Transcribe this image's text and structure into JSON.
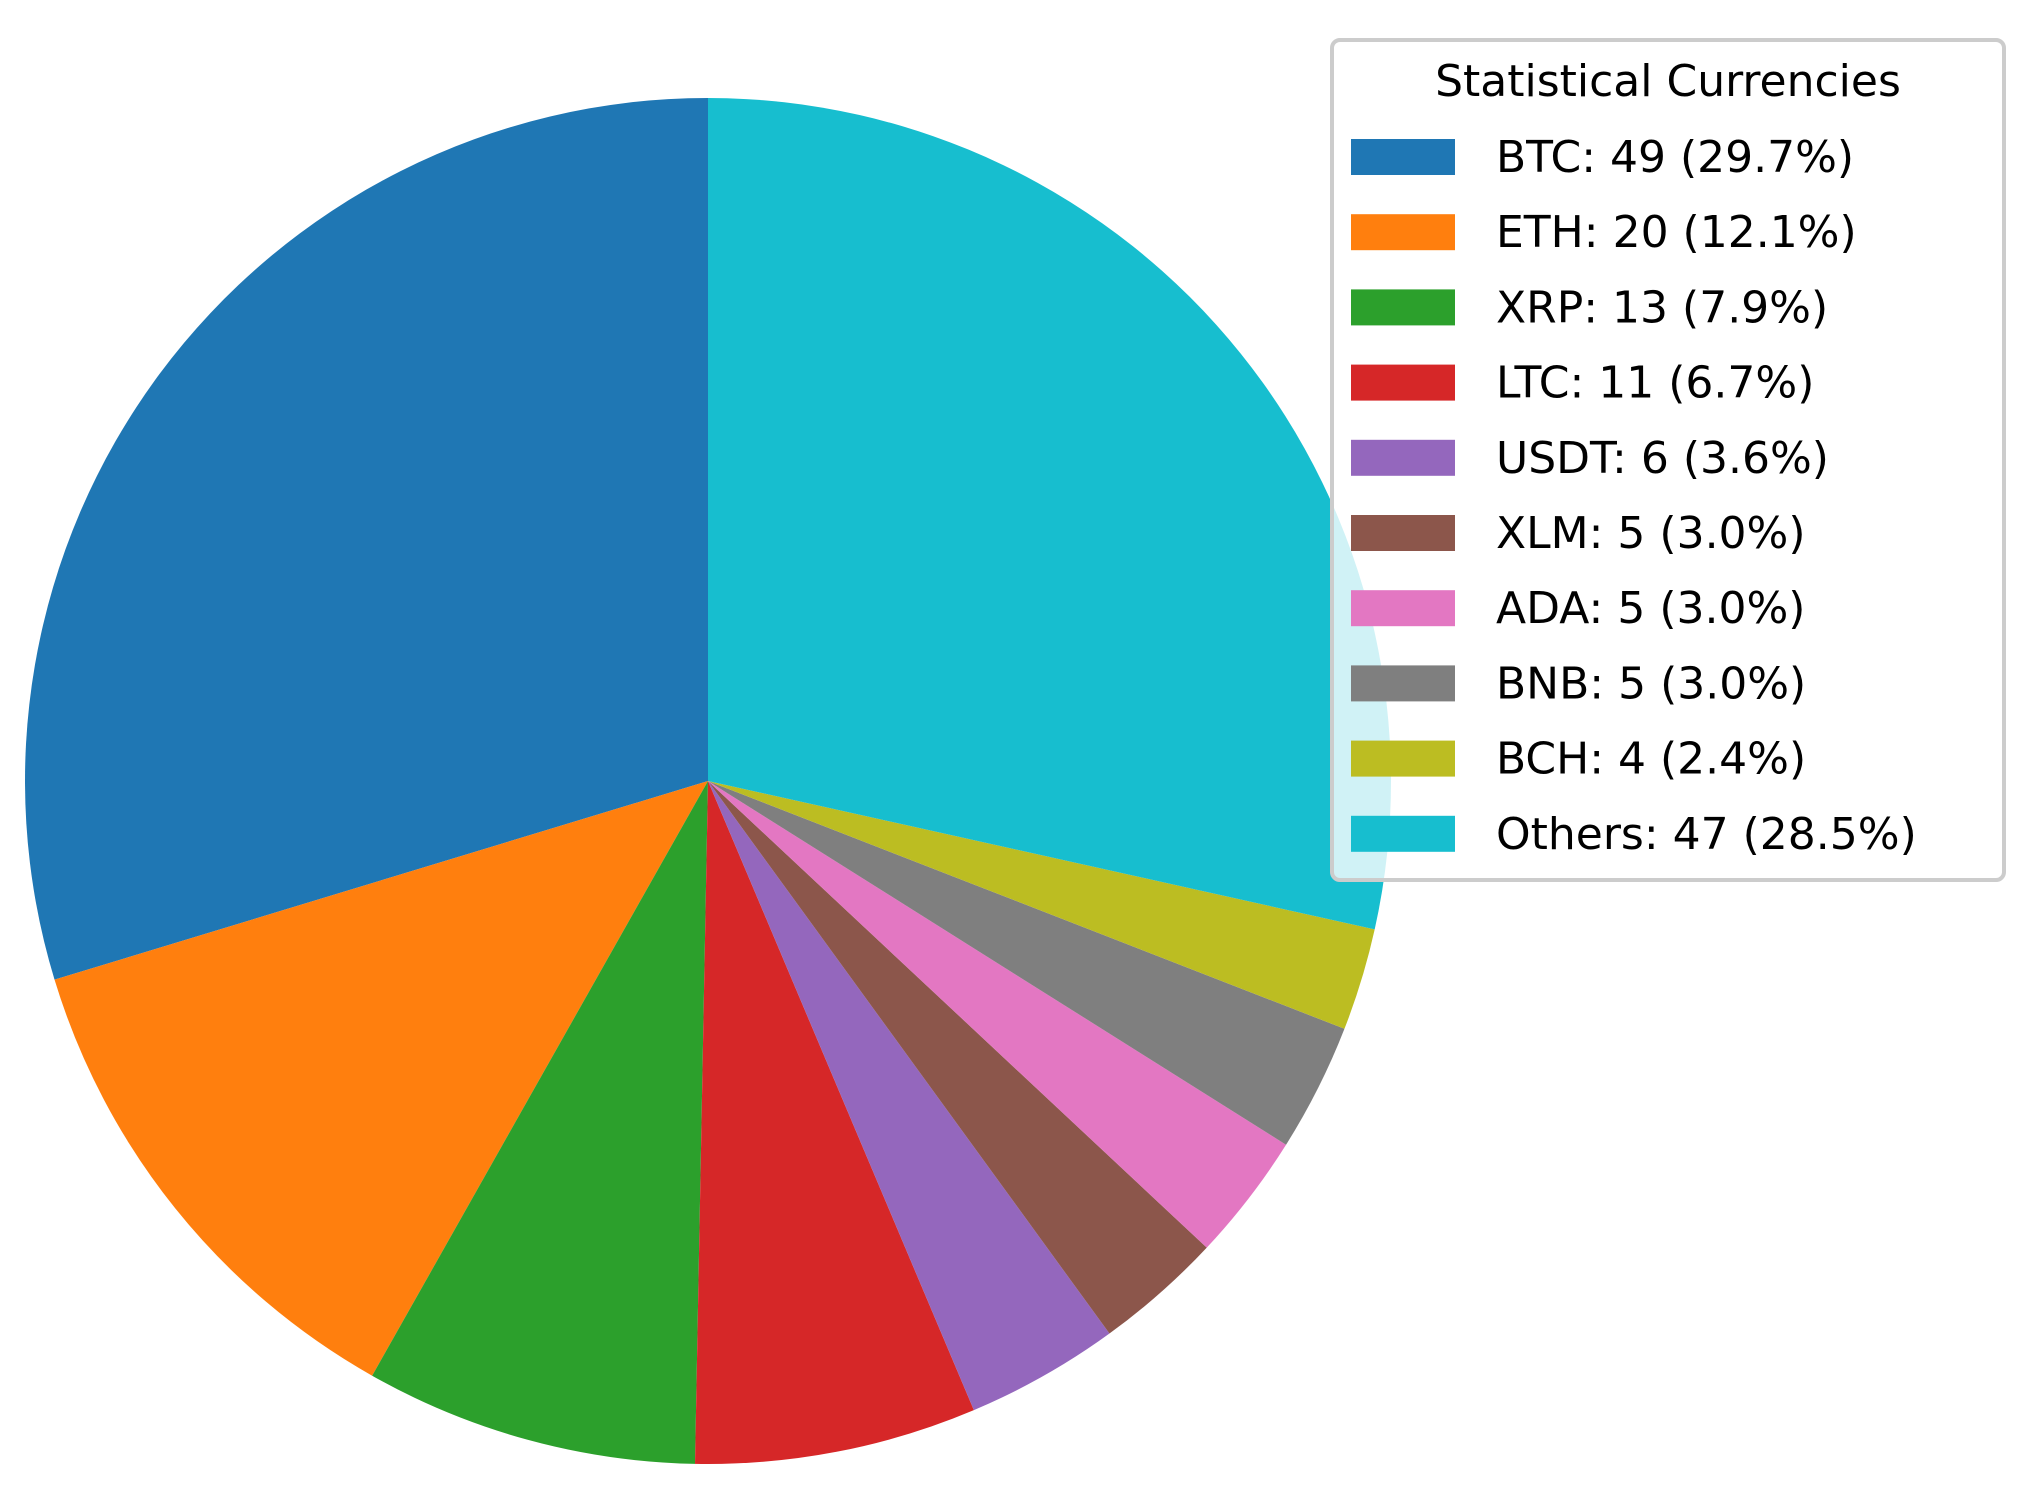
{
  "chart_data": {
    "type": "pie",
    "title": "",
    "legend_title": "Statistical Currencies",
    "legend_position": "upper right",
    "start_angle_deg": 90,
    "direction": "counterclockwise",
    "slices": [
      {
        "label": "BTC",
        "value": 49,
        "percent": 29.7,
        "legend_text": "BTC: 49 (29.7%)",
        "color": "#1f77b4"
      },
      {
        "label": "ETH",
        "value": 20,
        "percent": 12.1,
        "legend_text": "ETH: 20 (12.1%)",
        "color": "#ff7f0e"
      },
      {
        "label": "XRP",
        "value": 13,
        "percent": 7.9,
        "legend_text": "XRP: 13 (7.9%)",
        "color": "#2ca02c"
      },
      {
        "label": "LTC",
        "value": 11,
        "percent": 6.7,
        "legend_text": "LTC: 11 (6.7%)",
        "color": "#d62728"
      },
      {
        "label": "USDT",
        "value": 6,
        "percent": 3.6,
        "legend_text": "USDT: 6 (3.6%)",
        "color": "#9467bd"
      },
      {
        "label": "XLM",
        "value": 5,
        "percent": 3.0,
        "legend_text": "XLM: 5 (3.0%)",
        "color": "#8c564b"
      },
      {
        "label": "ADA",
        "value": 5,
        "percent": 3.0,
        "legend_text": "ADA: 5 (3.0%)",
        "color": "#e377c2"
      },
      {
        "label": "BNB",
        "value": 5,
        "percent": 3.0,
        "legend_text": "BNB: 5 (3.0%)",
        "color": "#7f7f7f"
      },
      {
        "label": "BCH",
        "value": 4,
        "percent": 2.4,
        "legend_text": "BCH: 4 (2.4%)",
        "color": "#bcbd22"
      },
      {
        "label": "Others",
        "value": 47,
        "percent": 28.5,
        "legend_text": "Others: 47 (28.5%)",
        "color": "#17becf"
      }
    ]
  }
}
